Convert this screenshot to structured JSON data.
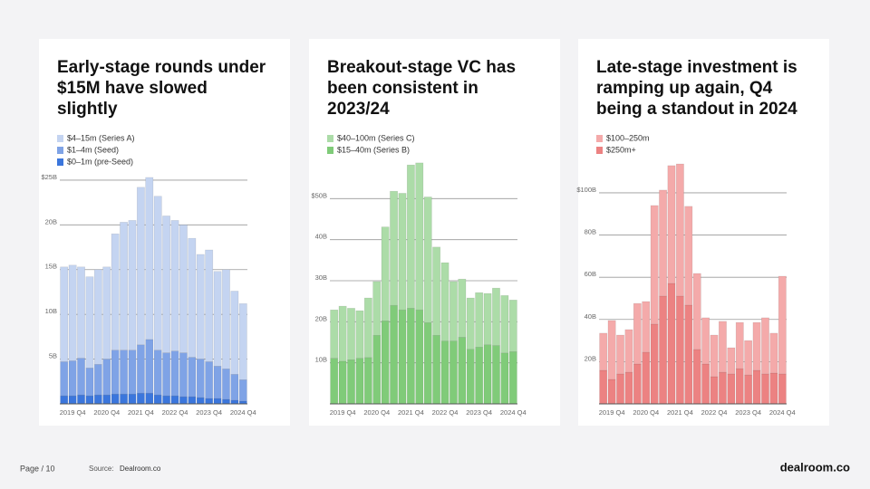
{
  "chart_data": [
    {
      "type": "bar",
      "stacked": true,
      "title": [
        "Early-stage rounds under",
        "$15M have slowed",
        "slightly"
      ],
      "categories": [
        null,
        "2019 Q4",
        null,
        null,
        null,
        "2020 Q4",
        null,
        null,
        null,
        "2021 Q4",
        null,
        null,
        null,
        "2022 Q4",
        null,
        null,
        null,
        "2023 Q4",
        null,
        null,
        null,
        "2024 Q4"
      ],
      "series": [
        {
          "name": "$4–15m (Series A)",
          "color": "#c4d4f1",
          "values": [
            10.6,
            10.7,
            10.2,
            10.2,
            10.6,
            10.3,
            13.0,
            14.3,
            14.5,
            17.6,
            18.1,
            17.2,
            15.3,
            14.6,
            14.3,
            13.3,
            11.7,
            12.5,
            10.6,
            11.1,
            9.3,
            8.5
          ]
        },
        {
          "name": "$1–4m (Seed)",
          "color": "#7fa3e6",
          "values": [
            3.8,
            3.9,
            4.1,
            3.1,
            3.4,
            4.0,
            4.9,
            4.9,
            4.9,
            5.4,
            6.0,
            5.0,
            4.8,
            5.0,
            4.9,
            4.4,
            4.3,
            4.1,
            3.6,
            3.4,
            2.9,
            2.4
          ]
        },
        {
          "name": "$0–1m (pre-Seed)",
          "color": "#3b76dc",
          "values": [
            0.9,
            0.9,
            1.0,
            0.9,
            1.0,
            1.0,
            1.1,
            1.1,
            1.1,
            1.2,
            1.2,
            1.0,
            0.9,
            0.9,
            0.8,
            0.8,
            0.7,
            0.6,
            0.6,
            0.5,
            0.4,
            0.3
          ]
        }
      ],
      "ylim": [
        0,
        25.7
      ],
      "yticks": [
        {
          "value": 25,
          "label": "$25B"
        },
        {
          "value": 20,
          "label": "20B"
        },
        {
          "value": 15,
          "label": "15B"
        },
        {
          "value": 10,
          "label": "10B"
        },
        {
          "value": 5,
          "label": "5B"
        }
      ],
      "grid": true
    },
    {
      "type": "bar",
      "stacked": true,
      "title": [
        "Breakout-stage VC has",
        "been consistent in",
        "2023/24"
      ],
      "categories": [
        null,
        "2019 Q4",
        null,
        null,
        null,
        "2020 Q4",
        null,
        null,
        null,
        "2021 Q4",
        null,
        null,
        null,
        "2022 Q4",
        null,
        null,
        null,
        "2023 Q4",
        null,
        null,
        null,
        "2024 Q4"
      ],
      "series": [
        {
          "name": "$40–100m (Series C)",
          "color": "#acdca8",
          "values": [
            11.8,
            13.4,
            12.6,
            11.6,
            14.5,
            13.1,
            22.9,
            27.8,
            28.4,
            34.9,
            35.8,
            30.6,
            21.5,
            19.1,
            14.5,
            14.2,
            12.5,
            13.3,
            12.5,
            14.0,
            14.0,
            12.6
          ]
        },
        {
          "name": "$15–40m (Series B)",
          "color": "#80cb79",
          "values": [
            11.1,
            10.4,
            10.7,
            11.1,
            11.3,
            16.7,
            20.2,
            24.0,
            22.9,
            23.3,
            22.9,
            19.8,
            16.7,
            15.3,
            15.3,
            16.2,
            13.3,
            13.8,
            14.4,
            14.2,
            12.4,
            12.7
          ]
        }
      ],
      "ylim": [
        0,
        60
      ],
      "yticks": [
        {
          "value": 50,
          "label": "$50B"
        },
        {
          "value": 40,
          "label": "40B"
        },
        {
          "value": 30,
          "label": "30B"
        },
        {
          "value": 20,
          "label": "20B"
        },
        {
          "value": 10,
          "label": "10B"
        }
      ],
      "grid": true
    },
    {
      "type": "bar",
      "stacked": true,
      "title": [
        "Late-stage investment is",
        "ramping up again, Q4",
        "being a standout in 2024"
      ],
      "categories": [
        null,
        "2019 Q4",
        null,
        null,
        null,
        "2020 Q4",
        null,
        null,
        null,
        "2021 Q4",
        null,
        null,
        null,
        "2022 Q4",
        null,
        null,
        null,
        "2023 Q4",
        null,
        null,
        null,
        "2024 Q4"
      ],
      "series": [
        {
          "name": "$100–250m",
          "color": "#f4aaaa",
          "values": [
            17.6,
            27.9,
            18.4,
            20.2,
            28.7,
            24.0,
            56.2,
            50.2,
            55.8,
            62.6,
            46.8,
            36.0,
            21.9,
            19.7,
            24.1,
            12.4,
            21.9,
            16.3,
            22.7,
            26.6,
            18.9,
            46.3
          ]
        },
        {
          "name": "$250m+",
          "color": "#ec8282",
          "values": [
            15.9,
            11.6,
            14.2,
            15.0,
            18.9,
            24.5,
            37.8,
            51.1,
            57.1,
            51.1,
            46.8,
            25.8,
            18.9,
            12.9,
            15.0,
            14.2,
            16.7,
            13.7,
            15.9,
            14.2,
            14.6,
            14.2
          ]
        }
      ],
      "ylim": [
        0,
        115
      ],
      "yticks": [
        {
          "value": 100,
          "label": "$100B"
        },
        {
          "value": 80,
          "label": "80B"
        },
        {
          "value": 60,
          "label": "60B"
        },
        {
          "value": 40,
          "label": "40B"
        },
        {
          "value": 20,
          "label": "20B"
        }
      ],
      "grid": true
    }
  ],
  "footer": {
    "page": "Page / 10",
    "source_label": "Source:",
    "source": "Dealroom.co",
    "logo": "dealroom.co"
  }
}
